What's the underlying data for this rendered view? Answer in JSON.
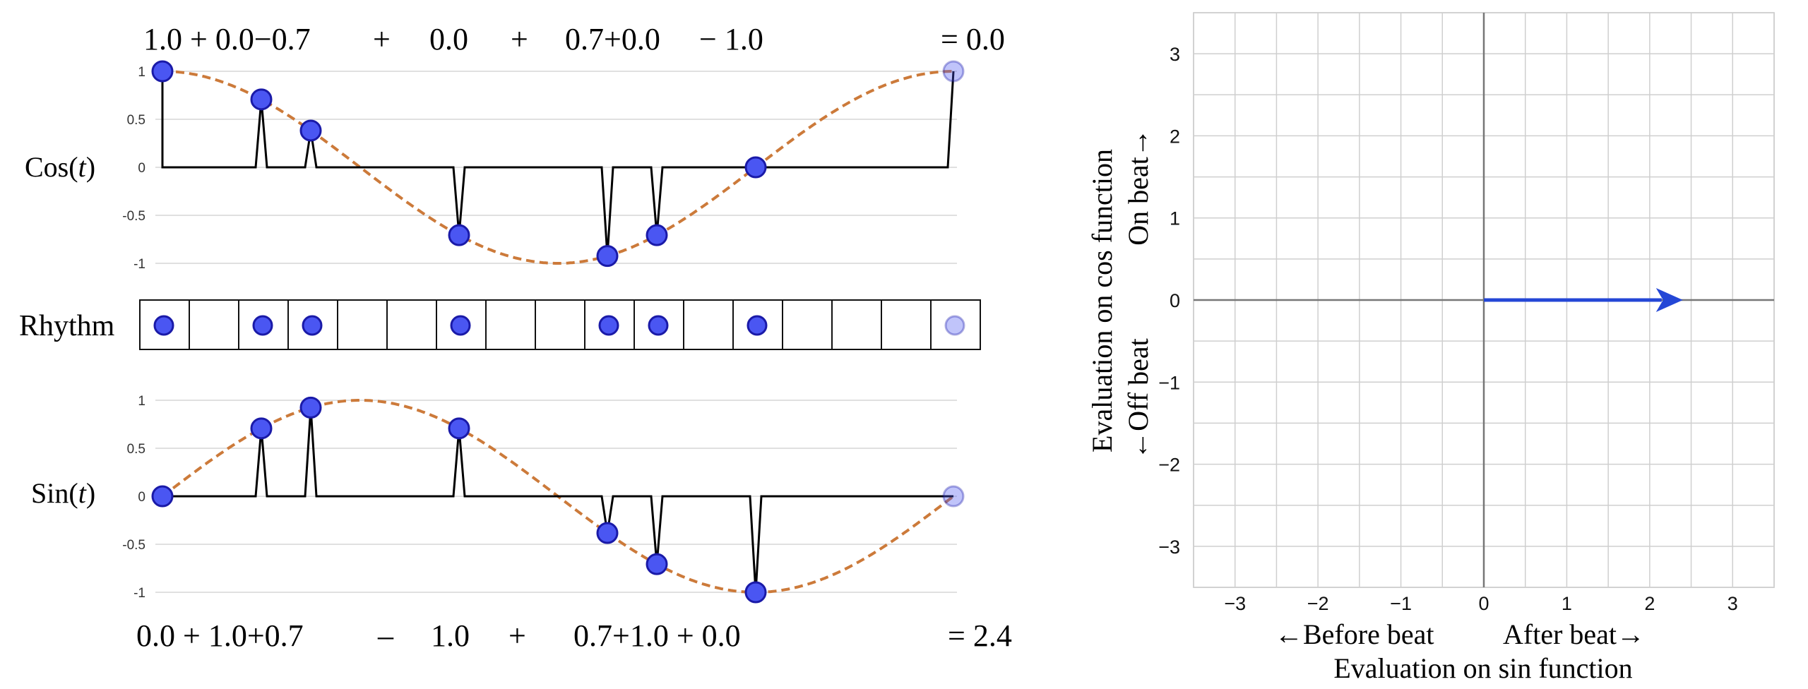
{
  "colors": {
    "dot_fill": "#4a56f2",
    "dot_stroke": "#1a1aa8",
    "wave": "#cc7a3a",
    "arrow": "#2447d6",
    "grid": "#cfcfcf",
    "axis": "#777777"
  },
  "cos_panel": {
    "label": "Cos(t)",
    "label_plain": "Cos(",
    "label_var": "t",
    "label_close": ")",
    "yticks": [
      "1",
      "0.5",
      "0",
      "-0.5",
      "-1"
    ],
    "equation_terms": [
      "1.0 + 0.0−0.7",
      "+",
      "0.0",
      "+",
      "0.7+0.0",
      "− 1.0"
    ],
    "equation_result": "=  0.0"
  },
  "rhythm": {
    "label": "Rhythm",
    "cells": 17,
    "active_steps": [
      0,
      2,
      3,
      6,
      9,
      10,
      12
    ],
    "ghost_step": 16
  },
  "sin_panel": {
    "label": "Sin(t)",
    "label_plain": "Sin(",
    "label_var": "t",
    "label_close": ")",
    "yticks": [
      "1",
      "0.5",
      "0",
      "-0.5",
      "-1"
    ],
    "equation_terms": [
      "0.0 + 1.0+0.7",
      "–",
      "1.0",
      "+",
      "0.7+1.0 + 0.0"
    ],
    "equation_result": "= 2.4"
  },
  "vector_plot": {
    "x_ticks": [
      "−3",
      "−2",
      "−1",
      "0",
      "1",
      "2",
      "3"
    ],
    "y_ticks": [
      "3",
      "2",
      "1",
      "0",
      "−1",
      "−2",
      "−3"
    ],
    "x_range": [
      -3.5,
      3.5
    ],
    "y_range": [
      -3.5,
      3.5
    ],
    "vector": {
      "x": 2.4,
      "y": 0.0
    },
    "x_left_label": "←Before beat",
    "x_right_label": "After beat→",
    "x_title": "Evaluation on sin function",
    "y_title": "Evaluation on cos function",
    "y_top_label": "On beat→",
    "y_bottom_label": "←Off beat"
  }
}
